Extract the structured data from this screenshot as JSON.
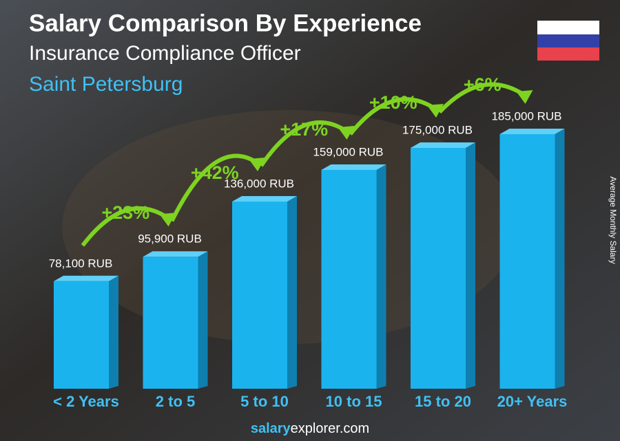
{
  "chart_data": {
    "type": "bar",
    "title": "Salary Comparison By Experience",
    "subtitle": "Insurance Compliance Officer",
    "location": "Saint Petersburg",
    "y_axis_label": "Average Monthly Salary",
    "categories": [
      "< 2 Years",
      "2 to 5",
      "5 to 10",
      "10 to 15",
      "15 to 20",
      "20+ Years"
    ],
    "values": [
      78100,
      95900,
      136000,
      159000,
      175000,
      185000
    ],
    "value_labels": [
      "78,100 RUB",
      "95,900 RUB",
      "136,000 RUB",
      "159,000 RUB",
      "175,000 RUB",
      "185,000 RUB"
    ],
    "color": "#1bb3ee",
    "changes": [
      23,
      42,
      17,
      10,
      6
    ],
    "change_labels": [
      "+23%",
      "+42%",
      "+17%",
      "+10%",
      "+6%"
    ],
    "change_color": "#7ed321",
    "source": {
      "brand": "salary",
      "rest": "explorer.com"
    }
  }
}
